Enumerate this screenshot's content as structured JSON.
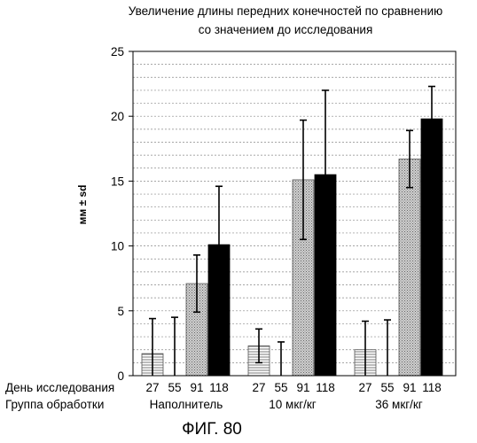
{
  "chart_data": {
    "type": "bar",
    "title_lines": [
      "Увеличение длины передних конечностей по сравнению",
      "со значением до исследования"
    ],
    "ylabel": "мм ± sd",
    "ylim": [
      0,
      25
    ],
    "yticks": [
      0,
      5,
      10,
      15,
      20,
      25
    ],
    "grid": true,
    "row_labels": {
      "day": "День исследования",
      "group": "Группа обработки"
    },
    "days": [
      "27",
      "55",
      "91",
      "118"
    ],
    "groups": [
      {
        "name": "Наполнитель",
        "values": [
          1.7,
          0,
          7.1,
          10.1
        ],
        "errors": [
          2.7,
          4.5,
          2.2,
          4.5
        ]
      },
      {
        "name": "10 мкг/кг",
        "values": [
          2.3,
          0,
          15.1,
          15.5
        ],
        "errors": [
          1.3,
          2.6,
          4.6,
          6.5
        ]
      },
      {
        "name": "36 мкг/кг",
        "values": [
          2.0,
          0,
          16.7,
          19.8
        ],
        "errors": [
          2.2,
          4.3,
          2.2,
          2.5
        ]
      }
    ],
    "figure_label": "ФИГ. 80"
  }
}
